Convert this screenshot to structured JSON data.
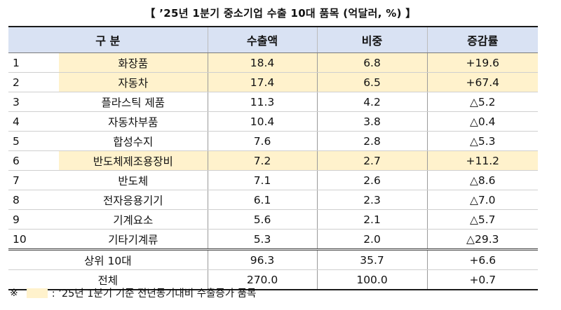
{
  "title": "【 ’25년 1분기 중소기업 수출 10대 품목 (억달러, %) 】",
  "headers": {
    "category": "구  분",
    "export": "수출액",
    "share": "비중",
    "change": "증감률"
  },
  "rows": [
    {
      "rank": "1",
      "item": "화장품",
      "export": "18.4",
      "share": "6.8",
      "change": "+19.6",
      "highlight": true
    },
    {
      "rank": "2",
      "item": "자동차",
      "export": "17.4",
      "share": "6.5",
      "change": "+67.4",
      "highlight": true
    },
    {
      "rank": "3",
      "item": "플라스틱 제품",
      "export": "11.3",
      "share": "4.2",
      "change": "△5.2",
      "highlight": false
    },
    {
      "rank": "4",
      "item": "자동차부품",
      "export": "10.4",
      "share": "3.8",
      "change": "△0.4",
      "highlight": false
    },
    {
      "rank": "5",
      "item": "합성수지",
      "export": "7.6",
      "share": "2.8",
      "change": "△5.3",
      "highlight": false
    },
    {
      "rank": "6",
      "item": "반도체제조용장비",
      "export": "7.2",
      "share": "2.7",
      "change": "+11.2",
      "highlight": true
    },
    {
      "rank": "7",
      "item": "반도체",
      "export": "7.1",
      "share": "2.6",
      "change": "△8.6",
      "highlight": false
    },
    {
      "rank": "8",
      "item": "전자응용기기",
      "export": "6.1",
      "share": "2.3",
      "change": "△7.0",
      "highlight": false
    },
    {
      "rank": "9",
      "item": "기계요소",
      "export": "5.6",
      "share": "2.1",
      "change": "△5.7",
      "highlight": false
    },
    {
      "rank": "10",
      "item": "기타기계류",
      "export": "5.3",
      "share": "2.0",
      "change": "△29.3",
      "highlight": false
    }
  ],
  "totals": [
    {
      "label": "상위 10대",
      "export": "96.3",
      "share": "35.7",
      "change": "+6.6"
    },
    {
      "label": "전체",
      "export": "270.0",
      "share": "100.0",
      "change": "+0.7"
    }
  ],
  "note": {
    "mark": "※",
    "text": ": ’25년 1분기 기준 전년동기대비 수출증가 품목",
    "swatch_color": "#fff2cc"
  }
}
